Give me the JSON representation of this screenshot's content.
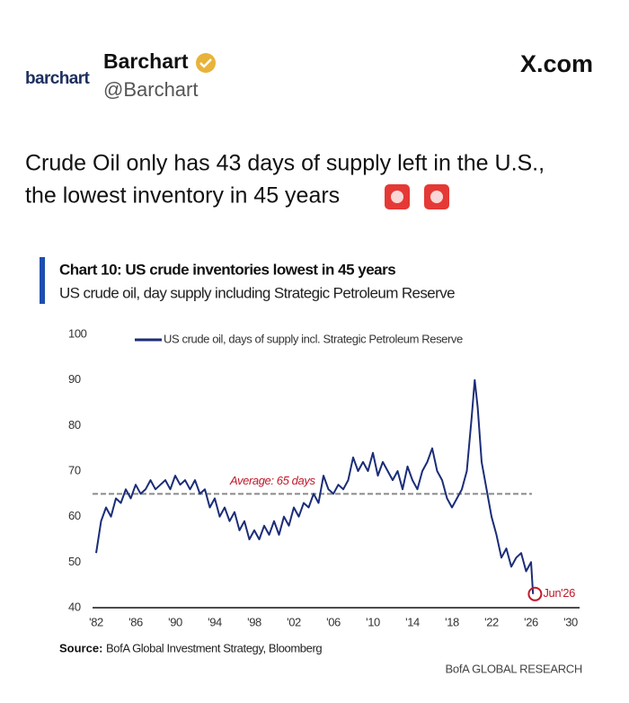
{
  "post": {
    "logo": "barchart",
    "author": "Barchart",
    "handle": "@Barchart",
    "site": "X.com",
    "text_lines": [
      "Crude Oil only has 43 days of supply left in the U.S.,",
      "the lowest inventory in 45 years"
    ]
  },
  "chart_data": {
    "type": "line",
    "title": "Chart 10: US crude inventories lowest in 45 years",
    "subtitle": "US crude oil, day supply including Strategic Petroleum Reserve",
    "series": [
      {
        "name": "US crude oil, days of supply incl. Strategic Petroleum Reserve",
        "color": "#1b2d78",
        "x": [
          1982,
          1982.5,
          1983,
          1983.5,
          1984,
          1984.5,
          1985,
          1985.5,
          1986,
          1986.5,
          1987,
          1987.5,
          1988,
          1988.5,
          1989,
          1989.5,
          1990,
          1990.5,
          1991,
          1991.5,
          1992,
          1992.5,
          1993,
          1993.5,
          1994,
          1994.5,
          1995,
          1995.5,
          1996,
          1996.5,
          1997,
          1997.5,
          1998,
          1998.5,
          1999,
          1999.5,
          2000,
          2000.5,
          2001,
          2001.5,
          2002,
          2002.5,
          2003,
          2003.5,
          2004,
          2004.5,
          2005,
          2005.5,
          2006,
          2006.5,
          2007,
          2007.5,
          2008,
          2008.5,
          2009,
          2009.5,
          2010,
          2010.5,
          2011,
          2011.5,
          2012,
          2012.5,
          2013,
          2013.5,
          2014,
          2014.5,
          2015,
          2015.5,
          2016,
          2016.5,
          2017,
          2017.5,
          2018,
          2018.5,
          2019,
          2019.5,
          2020,
          2020.3,
          2020.6,
          2021,
          2021.5,
          2022,
          2022.5,
          2023,
          2023.5,
          2024,
          2024.5,
          2025,
          2025.5,
          2026,
          2026.2
        ],
        "values": [
          52,
          59,
          62,
          60,
          64,
          63,
          66,
          64,
          67,
          65,
          66,
          68,
          66,
          67,
          68,
          66,
          69,
          67,
          68,
          66,
          68,
          65,
          66,
          62,
          64,
          60,
          62,
          59,
          61,
          57,
          59,
          55,
          57,
          55,
          58,
          56,
          59,
          56,
          60,
          58,
          62,
          60,
          63,
          62,
          65,
          63,
          69,
          66,
          65,
          67,
          66,
          68,
          73,
          70,
          72,
          70,
          74,
          69,
          72,
          70,
          68,
          70,
          66,
          71,
          68,
          66,
          70,
          72,
          75,
          70,
          68,
          64,
          62,
          64,
          66,
          70,
          82,
          90,
          84,
          72,
          66,
          60,
          56,
          51,
          53,
          49,
          51,
          52,
          48,
          50,
          43
        ]
      }
    ],
    "average_value": 65,
    "average_label": "Average: 65 days",
    "average_color": "#8a8a8a",
    "marker": {
      "x": 2026.4,
      "value": 43,
      "label": "Jun'26",
      "color": "#c0182a"
    },
    "xlim": [
      1982,
      2030
    ],
    "xticks": [
      {
        "value": 1982,
        "label": "'82"
      },
      {
        "value": 1986,
        "label": "'86"
      },
      {
        "value": 1990,
        "label": "'90"
      },
      {
        "value": 1994,
        "label": "'94"
      },
      {
        "value": 1998,
        "label": "'98"
      },
      {
        "value": 2002,
        "label": "'02"
      },
      {
        "value": 2006,
        "label": "'06"
      },
      {
        "value": 2010,
        "label": "'10"
      },
      {
        "value": 2014,
        "label": "'14"
      },
      {
        "value": 2018,
        "label": "'18"
      },
      {
        "value": 2022,
        "label": "'22"
      },
      {
        "value": 2026,
        "label": "'26"
      },
      {
        "value": 2030,
        "label": "'30"
      }
    ],
    "ylim": [
      40,
      100
    ],
    "yticks": [
      40,
      50,
      60,
      70,
      80,
      90,
      100
    ],
    "grid": false,
    "source_label": "Source:",
    "source": "BofA Global Investment Strategy, Bloomberg",
    "footer": "BofA GLOBAL RESEARCH"
  }
}
